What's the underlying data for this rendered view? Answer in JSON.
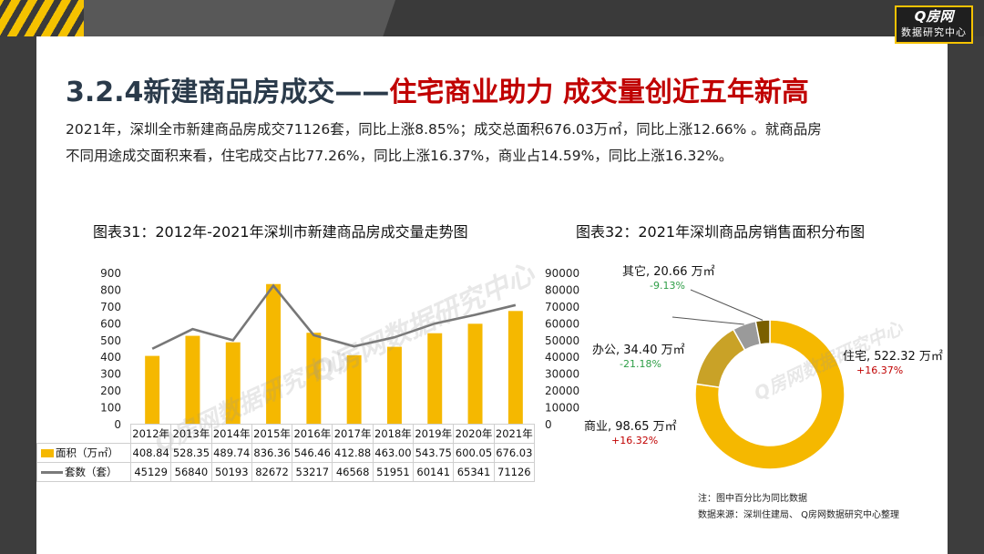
{
  "header": {
    "logo_main": "Q房网",
    "logo_sub": "数据研究中心"
  },
  "title": {
    "main": "3.2.4新建商品房成交——",
    "accent": "住宅商业助力  成交量创近五年新高"
  },
  "description": [
    "2021年，深圳全市新建商品房成交71126套，同比上涨8.85%；成交总面积676.03万㎡，同比上涨12.66% 。就商品房",
    "不同用途成交面积来看，住宅成交占比77.26%，同比上涨16.37%，商业占14.59%，同比上涨16.32%。"
  ],
  "colors": {
    "accent": "#f5b800",
    "title_red": "#c00000",
    "line": "#777777",
    "up": "#c00000",
    "down": "#2e9e47"
  },
  "watermark": {
    "text": "Q房网数据研究中心"
  },
  "chart_data": [
    {
      "type": "bar",
      "title": "图表31：2012年-2021年深圳市新建商品房成交量走势图",
      "categories": [
        "2012年",
        "2013年",
        "2014年",
        "2015年",
        "2016年",
        "2017年",
        "2018年",
        "2019年",
        "2020年",
        "2021年"
      ],
      "series": [
        {
          "name": "面积（万㎡）",
          "type": "bar",
          "axis": "left",
          "values": [
            408.84,
            528.35,
            489.74,
            836.36,
            546.46,
            412.88,
            463.0,
            543.75,
            600.05,
            676.03
          ]
        },
        {
          "name": "套数（套）",
          "type": "line",
          "axis": "right",
          "values": [
            45129,
            56840,
            50193,
            82672,
            53217,
            46568,
            51951,
            60141,
            65341,
            71126
          ]
        }
      ],
      "y_left": {
        "min": 0,
        "max": 900,
        "ticks": [
          "0",
          "100",
          "200",
          "300",
          "400",
          "500",
          "600",
          "700",
          "800",
          "900"
        ]
      },
      "y_right": {
        "min": 0,
        "max": 90000,
        "ticks": [
          "0",
          "10000",
          "20000",
          "30000",
          "40000",
          "50000",
          "60000",
          "70000",
          "80000",
          "90000"
        ]
      },
      "table_values": {
        "area": [
          "408.84",
          "528.35",
          "489.74",
          "836.36",
          "546.46",
          "412.88",
          "463.00",
          "543.75",
          "600.05",
          "676.03"
        ],
        "units": [
          "45129",
          "56840",
          "50193",
          "82672",
          "53217",
          "46568",
          "51951",
          "60141",
          "65341",
          "71126"
        ]
      },
      "grid": false
    },
    {
      "type": "pie",
      "title": "图表32：2021年深圳商品房销售面积分布图",
      "slices": [
        {
          "name": "住宅",
          "value": 522.32,
          "label": "住宅, 522.32 万㎡",
          "change": "+16.37%",
          "color": "#f5b800"
        },
        {
          "name": "商业",
          "value": 98.65,
          "label": "商业, 98.65 万㎡",
          "change": "+16.32%",
          "color": "#c9a227"
        },
        {
          "name": "办公",
          "value": 34.4,
          "label": "办公, 34.40 万㎡",
          "change": "-21.18%",
          "color": "#9a9a9a"
        },
        {
          "name": "其它",
          "value": 20.66,
          "label": "其它, 20.66 万㎡",
          "change": "-9.13%",
          "color": "#7a6000"
        }
      ],
      "donut": true
    }
  ],
  "notes": {
    "note1": "注：图中百分比为同比数据",
    "note2": "数据来源：深圳住建局、 Q房网数据研究中心整理"
  }
}
